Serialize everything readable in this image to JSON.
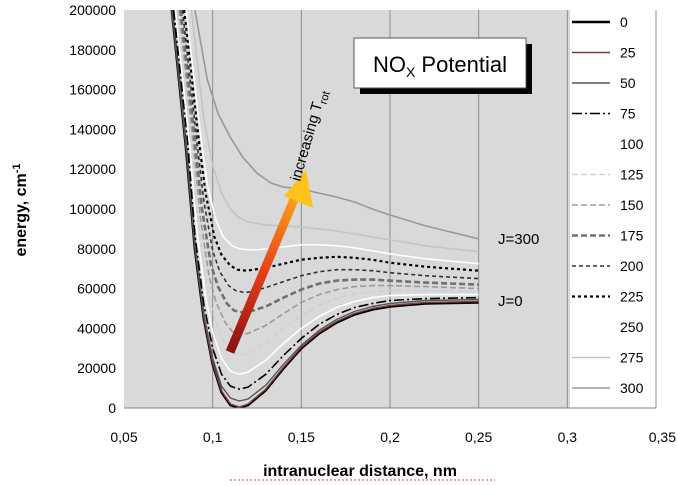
{
  "chart_data": {
    "type": "line",
    "title": "NO",
    "title_subscript": "X",
    "title_suffix": " Potential",
    "xlabel": "intranuclear distance, nm",
    "ylabel_main": "energy, cm",
    "ylabel_sup": "-1",
    "xlim": [
      0.05,
      0.35
    ],
    "ylim": [
      0,
      200000
    ],
    "x_ticks": [
      {
        "value": 0.05,
        "label": "0,05"
      },
      {
        "value": 0.1,
        "label": "0,1"
      },
      {
        "value": 0.15,
        "label": "0,15"
      },
      {
        "value": 0.2,
        "label": "0,2"
      },
      {
        "value": 0.25,
        "label": "0,25"
      },
      {
        "value": 0.3,
        "label": "0,3"
      },
      {
        "value": 0.35,
        "label": "0,35"
      }
    ],
    "y_ticks": [
      {
        "value": 0,
        "label": "0"
      },
      {
        "value": 20000,
        "label": "20000"
      },
      {
        "value": 40000,
        "label": "40000"
      },
      {
        "value": 60000,
        "label": "60000"
      },
      {
        "value": 80000,
        "label": "80000"
      },
      {
        "value": 100000,
        "label": "100000"
      },
      {
        "value": 120000,
        "label": "120000"
      },
      {
        "value": 140000,
        "label": "140000"
      },
      {
        "value": 160000,
        "label": "160000"
      },
      {
        "value": 180000,
        "label": "180000"
      },
      {
        "value": 200000,
        "label": "200000"
      }
    ],
    "grid": "vertical",
    "legend_position": "right",
    "annotations": {
      "arrow_label_main": "increasing T",
      "arrow_label_sub": "rot",
      "label_top": "J=300",
      "label_bottom": "J=0"
    },
    "series": [
      {
        "name": "0",
        "color": "#000000",
        "dash": "solid",
        "width": 2.6,
        "points": [
          [
            0.077,
            200000
          ],
          [
            0.085,
            130000
          ],
          [
            0.09,
            80000
          ],
          [
            0.095,
            45000
          ],
          [
            0.1,
            22000
          ],
          [
            0.105,
            8000
          ],
          [
            0.11,
            1500
          ],
          [
            0.115,
            0
          ],
          [
            0.12,
            1500
          ],
          [
            0.13,
            9000
          ],
          [
            0.14,
            20000
          ],
          [
            0.15,
            30000
          ],
          [
            0.16,
            37500
          ],
          [
            0.17,
            43000
          ],
          [
            0.18,
            47000
          ],
          [
            0.19,
            49500
          ],
          [
            0.2,
            51000
          ],
          [
            0.22,
            52500
          ],
          [
            0.25,
            53000
          ]
        ]
      },
      {
        "name": "25",
        "color": "#7a3a3a",
        "dash": "solid",
        "width": 1.4,
        "points": [
          [
            0.077,
            200000
          ],
          [
            0.085,
            130500
          ],
          [
            0.09,
            80500
          ],
          [
            0.095,
            45500
          ],
          [
            0.1,
            22500
          ],
          [
            0.105,
            8500
          ],
          [
            0.11,
            2000
          ],
          [
            0.115,
            500
          ],
          [
            0.12,
            2000
          ],
          [
            0.13,
            9500
          ],
          [
            0.14,
            20500
          ],
          [
            0.15,
            30500
          ],
          [
            0.16,
            38000
          ],
          [
            0.17,
            43500
          ],
          [
            0.18,
            47500
          ],
          [
            0.19,
            50000
          ],
          [
            0.2,
            51500
          ],
          [
            0.22,
            53000
          ],
          [
            0.25,
            53500
          ]
        ]
      },
      {
        "name": "50",
        "color": "#555555",
        "dash": "solid",
        "width": 1.4,
        "points": [
          [
            0.077,
            200000
          ],
          [
            0.085,
            132000
          ],
          [
            0.09,
            82000
          ],
          [
            0.095,
            47000
          ],
          [
            0.1,
            25000
          ],
          [
            0.105,
            11000
          ],
          [
            0.11,
            5000
          ],
          [
            0.115,
            3500
          ],
          [
            0.12,
            4500
          ],
          [
            0.13,
            11500
          ],
          [
            0.14,
            22000
          ],
          [
            0.15,
            31500
          ],
          [
            0.16,
            39000
          ],
          [
            0.17,
            44500
          ],
          [
            0.18,
            48500
          ],
          [
            0.19,
            51000
          ],
          [
            0.2,
            52500
          ],
          [
            0.22,
            54000
          ],
          [
            0.25,
            54500
          ]
        ]
      },
      {
        "name": "75",
        "color": "#000000",
        "dash": "10,3,2,3",
        "width": 1.6,
        "points": [
          [
            0.078,
            200000
          ],
          [
            0.086,
            133000
          ],
          [
            0.09,
            87000
          ],
          [
            0.095,
            52000
          ],
          [
            0.1,
            30000
          ],
          [
            0.105,
            17000
          ],
          [
            0.11,
            11000
          ],
          [
            0.115,
            9500
          ],
          [
            0.12,
            10500
          ],
          [
            0.13,
            17000
          ],
          [
            0.14,
            26500
          ],
          [
            0.15,
            35000
          ],
          [
            0.16,
            42000
          ],
          [
            0.17,
            47000
          ],
          [
            0.18,
            50500
          ],
          [
            0.19,
            52500
          ],
          [
            0.2,
            54000
          ],
          [
            0.22,
            55000
          ],
          [
            0.25,
            55500
          ]
        ]
      },
      {
        "name": "100",
        "color": "#ffffff",
        "dash": "solid",
        "width": 1.6,
        "points": [
          [
            0.079,
            200000
          ],
          [
            0.087,
            132000
          ],
          [
            0.091,
            90000
          ],
          [
            0.096,
            56000
          ],
          [
            0.1,
            38000
          ],
          [
            0.105,
            25000
          ],
          [
            0.11,
            18500
          ],
          [
            0.115,
            17000
          ],
          [
            0.12,
            18000
          ],
          [
            0.13,
            24000
          ],
          [
            0.14,
            32500
          ],
          [
            0.15,
            40000
          ],
          [
            0.16,
            46000
          ],
          [
            0.17,
            50500
          ],
          [
            0.18,
            53500
          ],
          [
            0.19,
            55500
          ],
          [
            0.2,
            56500
          ],
          [
            0.22,
            57000
          ],
          [
            0.25,
            57000
          ]
        ]
      },
      {
        "name": "125",
        "color": "#d0d0d0",
        "dash": "6,3",
        "width": 1.6,
        "points": [
          [
            0.08,
            200000
          ],
          [
            0.088,
            132000
          ],
          [
            0.092,
            92000
          ],
          [
            0.097,
            60000
          ],
          [
            0.101,
            45000
          ],
          [
            0.106,
            34000
          ],
          [
            0.11,
            28500
          ],
          [
            0.115,
            26500
          ],
          [
            0.12,
            27500
          ],
          [
            0.13,
            32500
          ],
          [
            0.14,
            40000
          ],
          [
            0.15,
            46500
          ],
          [
            0.16,
            51500
          ],
          [
            0.17,
            55000
          ],
          [
            0.18,
            57500
          ],
          [
            0.19,
            58500
          ],
          [
            0.2,
            59000
          ],
          [
            0.22,
            59000
          ],
          [
            0.25,
            58500
          ]
        ]
      },
      {
        "name": "150",
        "color": "#9a9a9a",
        "dash": "6,3",
        "width": 1.6,
        "points": [
          [
            0.081,
            200000
          ],
          [
            0.089,
            133000
          ],
          [
            0.093,
            96000
          ],
          [
            0.098,
            66000
          ],
          [
            0.102,
            53000
          ],
          [
            0.107,
            43000
          ],
          [
            0.111,
            38500
          ],
          [
            0.116,
            37000
          ],
          [
            0.12,
            37500
          ],
          [
            0.13,
            41500
          ],
          [
            0.14,
            47500
          ],
          [
            0.15,
            53000
          ],
          [
            0.16,
            57000
          ],
          [
            0.17,
            59500
          ],
          [
            0.18,
            61000
          ],
          [
            0.19,
            61500
          ],
          [
            0.2,
            61500
          ],
          [
            0.22,
            61000
          ],
          [
            0.25,
            60000
          ]
        ]
      },
      {
        "name": "175",
        "color": "#707070",
        "dash": "6,3",
        "width": 2.6,
        "points": [
          [
            0.082,
            200000
          ],
          [
            0.09,
            134000
          ],
          [
            0.094,
            100000
          ],
          [
            0.099,
            72000
          ],
          [
            0.103,
            61000
          ],
          [
            0.108,
            52500
          ],
          [
            0.112,
            49000
          ],
          [
            0.117,
            48000
          ],
          [
            0.121,
            48500
          ],
          [
            0.13,
            51000
          ],
          [
            0.14,
            55500
          ],
          [
            0.15,
            59500
          ],
          [
            0.16,
            62500
          ],
          [
            0.17,
            64000
          ],
          [
            0.18,
            64500
          ],
          [
            0.19,
            64500
          ],
          [
            0.2,
            64000
          ],
          [
            0.22,
            63000
          ],
          [
            0.25,
            62000
          ]
        ]
      },
      {
        "name": "200",
        "color": "#333333",
        "dash": "4,3",
        "width": 1.6,
        "points": [
          [
            0.083,
            200000
          ],
          [
            0.091,
            135000
          ],
          [
            0.095,
            104000
          ],
          [
            0.1,
            79000
          ],
          [
            0.104,
            68500
          ],
          [
            0.109,
            61500
          ],
          [
            0.113,
            59000
          ],
          [
            0.118,
            58000
          ],
          [
            0.122,
            58500
          ],
          [
            0.13,
            60500
          ],
          [
            0.14,
            63500
          ],
          [
            0.15,
            66500
          ],
          [
            0.16,
            68500
          ],
          [
            0.17,
            69500
          ],
          [
            0.18,
            69500
          ],
          [
            0.19,
            69000
          ],
          [
            0.2,
            68000
          ],
          [
            0.22,
            66500
          ],
          [
            0.25,
            65000
          ]
        ]
      },
      {
        "name": "225",
        "color": "#000000",
        "dash": "3,3",
        "width": 2.2,
        "points": [
          [
            0.084,
            200000
          ],
          [
            0.092,
            136000
          ],
          [
            0.096,
            108000
          ],
          [
            0.101,
            86000
          ],
          [
            0.105,
            77000
          ],
          [
            0.11,
            71500
          ],
          [
            0.114,
            69500
          ],
          [
            0.119,
            69000
          ],
          [
            0.123,
            69500
          ],
          [
            0.13,
            70500
          ],
          [
            0.14,
            72500
          ],
          [
            0.15,
            74500
          ],
          [
            0.16,
            75500
          ],
          [
            0.17,
            76000
          ],
          [
            0.18,
            75500
          ],
          [
            0.19,
            74500
          ],
          [
            0.2,
            73000
          ],
          [
            0.22,
            71000
          ],
          [
            0.25,
            69000
          ]
        ]
      },
      {
        "name": "250",
        "color": "#ffffff",
        "dash": "solid",
        "width": 1.6,
        "points": [
          [
            0.085,
            200000
          ],
          [
            0.093,
            138000
          ],
          [
            0.097,
            112000
          ],
          [
            0.102,
            94000
          ],
          [
            0.106,
            86000
          ],
          [
            0.111,
            81500
          ],
          [
            0.115,
            80000
          ],
          [
            0.12,
            79500
          ],
          [
            0.125,
            79500
          ],
          [
            0.13,
            80000
          ],
          [
            0.14,
            81000
          ],
          [
            0.15,
            82000
          ],
          [
            0.16,
            82000
          ],
          [
            0.17,
            81500
          ],
          [
            0.18,
            80500
          ],
          [
            0.19,
            79000
          ],
          [
            0.2,
            77500
          ],
          [
            0.22,
            75000
          ],
          [
            0.25,
            72500
          ]
        ]
      },
      {
        "name": "275",
        "color": "#c4c4c4",
        "dash": "solid",
        "width": 1.6,
        "points": [
          [
            0.088,
            200000
          ],
          [
            0.095,
            145000
          ],
          [
            0.1,
            122000
          ],
          [
            0.105,
            108000
          ],
          [
            0.11,
            100000
          ],
          [
            0.115,
            95500
          ],
          [
            0.12,
            93500
          ],
          [
            0.13,
            92000
          ],
          [
            0.14,
            91500
          ],
          [
            0.15,
            91000
          ],
          [
            0.16,
            90000
          ],
          [
            0.17,
            89000
          ],
          [
            0.18,
            87500
          ],
          [
            0.19,
            86000
          ],
          [
            0.2,
            84500
          ],
          [
            0.22,
            81500
          ],
          [
            0.25,
            78500
          ]
        ]
      },
      {
        "name": "300",
        "color": "#999999",
        "dash": "solid",
        "width": 1.6,
        "points": [
          [
            0.09,
            200000
          ],
          [
            0.097,
            165000
          ],
          [
            0.103,
            148000
          ],
          [
            0.11,
            136000
          ],
          [
            0.117,
            126000
          ],
          [
            0.125,
            118000
          ],
          [
            0.133,
            113000
          ],
          [
            0.14,
            111000
          ],
          [
            0.15,
            110000
          ],
          [
            0.16,
            108000
          ],
          [
            0.17,
            106000
          ],
          [
            0.18,
            103500
          ],
          [
            0.19,
            100000
          ],
          [
            0.2,
            97000
          ],
          [
            0.22,
            91500
          ],
          [
            0.25,
            85000
          ]
        ]
      },
      {
        "name": "J=0 marker",
        "color": "#000000",
        "dash": "solid",
        "width": 0,
        "points": []
      }
    ]
  }
}
